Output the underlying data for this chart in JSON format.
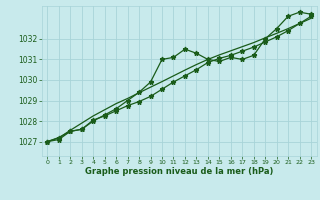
{
  "x": [
    0,
    1,
    2,
    3,
    4,
    5,
    6,
    7,
    8,
    9,
    10,
    11,
    12,
    13,
    14,
    15,
    16,
    17,
    18,
    19,
    20,
    21,
    22,
    23
  ],
  "series1": [
    1027.0,
    1027.2,
    1027.5,
    1027.6,
    1028.0,
    1028.3,
    1028.6,
    1029.0,
    1029.4,
    1029.9,
    1031.0,
    1031.1,
    1031.5,
    1031.3,
    1031.0,
    1030.9,
    1031.1,
    1031.0,
    1031.2,
    1032.0,
    1032.5,
    1033.1,
    1033.3,
    1033.2
  ],
  "series2": [
    1027.0,
    1027.1,
    1027.5,
    1027.6,
    1028.05,
    1028.25,
    1028.5,
    1028.75,
    1028.95,
    1029.2,
    1029.55,
    1029.9,
    1030.2,
    1030.5,
    1030.85,
    1031.05,
    1031.2,
    1031.4,
    1031.6,
    1031.85,
    1032.1,
    1032.4,
    1032.75,
    1033.1
  ],
  "series3": [
    1027.0,
    1027.18,
    1027.55,
    1027.9,
    1028.25,
    1028.55,
    1028.85,
    1029.1,
    1029.38,
    1029.65,
    1029.92,
    1030.2,
    1030.48,
    1030.75,
    1031.0,
    1031.22,
    1031.42,
    1031.62,
    1031.82,
    1032.05,
    1032.27,
    1032.5,
    1032.75,
    1033.0
  ],
  "line_color": "#1a5c1a",
  "bg_color": "#c8eaec",
  "grid_color": "#a8d4d8",
  "xlabel": "Graphe pression niveau de la mer (hPa)",
  "xlabel_color": "#1a5c1a",
  "tick_color": "#1a5c1a",
  "ylim": [
    1026.3,
    1033.6
  ],
  "yticks": [
    1027,
    1028,
    1029,
    1030,
    1031,
    1032
  ],
  "xlim": [
    -0.5,
    23.5
  ],
  "xticks": [
    0,
    1,
    2,
    3,
    4,
    5,
    6,
    7,
    8,
    9,
    10,
    11,
    12,
    13,
    14,
    15,
    16,
    17,
    18,
    19,
    20,
    21,
    22,
    23
  ]
}
